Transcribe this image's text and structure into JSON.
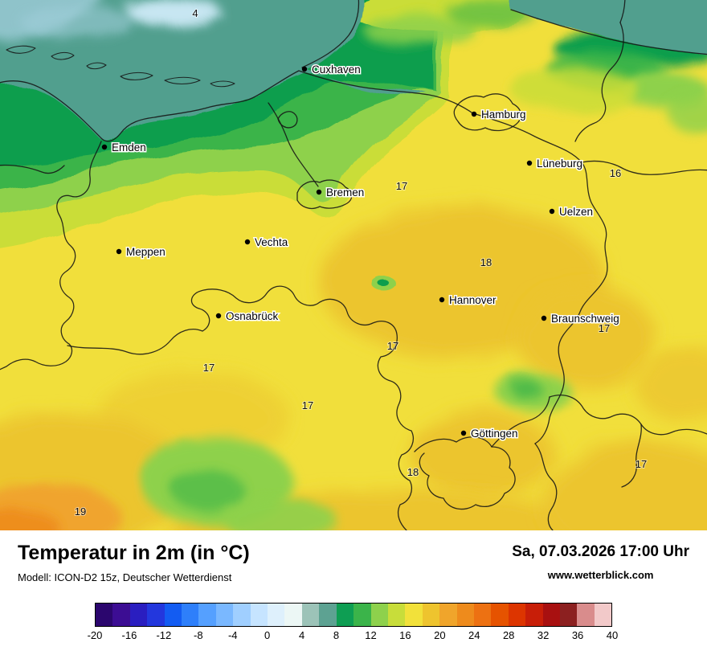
{
  "map": {
    "cities": [
      "Cuxhaven",
      "Hamburg",
      "Emden",
      "Lüneburg",
      "Bremen",
      "Uelzen",
      "Vechta",
      "Meppen",
      "Hannover",
      "Osnabrück",
      "Braunschweig",
      "Göttingen"
    ],
    "temp_labels": [
      "4",
      "17",
      "16",
      "18",
      "17",
      "17",
      "17",
      "17",
      "18",
      "17",
      "19"
    ],
    "colors": {
      "sea": "#519f8e",
      "pale_blue": "#c7e6f2",
      "mid_blue": "#9fcdd9",
      "dark_green": "#0e9e4d",
      "mid_green": "#3ab44a",
      "light_green": "#8ed14c",
      "yellow_green": "#cadd37",
      "base_yellow": "#f1df3b",
      "amber": "#ecc52f",
      "orange": "#f0a42e",
      "deep_orange": "#ee8c1e"
    }
  },
  "footer": {
    "title": "Temperatur in 2m (in °C)",
    "model": "Modell: ICON-D2 15z, Deutscher Wetterdienst",
    "datetime": "Sa, 07.03.2026 17:00 Uhr",
    "website": "www.wetterblick.com"
  },
  "legend": {
    "ticks": [
      "-20",
      "-16",
      "-12",
      "-8",
      "-4",
      "0",
      "4",
      "8",
      "12",
      "16",
      "20",
      "24",
      "28",
      "32",
      "36",
      "40"
    ],
    "colors": [
      "#2b066e",
      "#3c0d93",
      "#2a1ec0",
      "#2337dd",
      "#135cf2",
      "#2e7ffa",
      "#55a0ff",
      "#7ab8ff",
      "#a0cfff",
      "#c6e4ff",
      "#def0fc",
      "#ecf7f5",
      "#9cc3b8",
      "#5da292",
      "#0e9e53",
      "#3bb44a",
      "#8ed14c",
      "#c8dd3a",
      "#f2e13a",
      "#eec42e",
      "#f0a52b",
      "#ee8b1c",
      "#ed7112",
      "#e65300",
      "#dd3500",
      "#c81e08",
      "#a81010",
      "#8c2020",
      "#d98c8c",
      "#f2c9c9"
    ]
  }
}
